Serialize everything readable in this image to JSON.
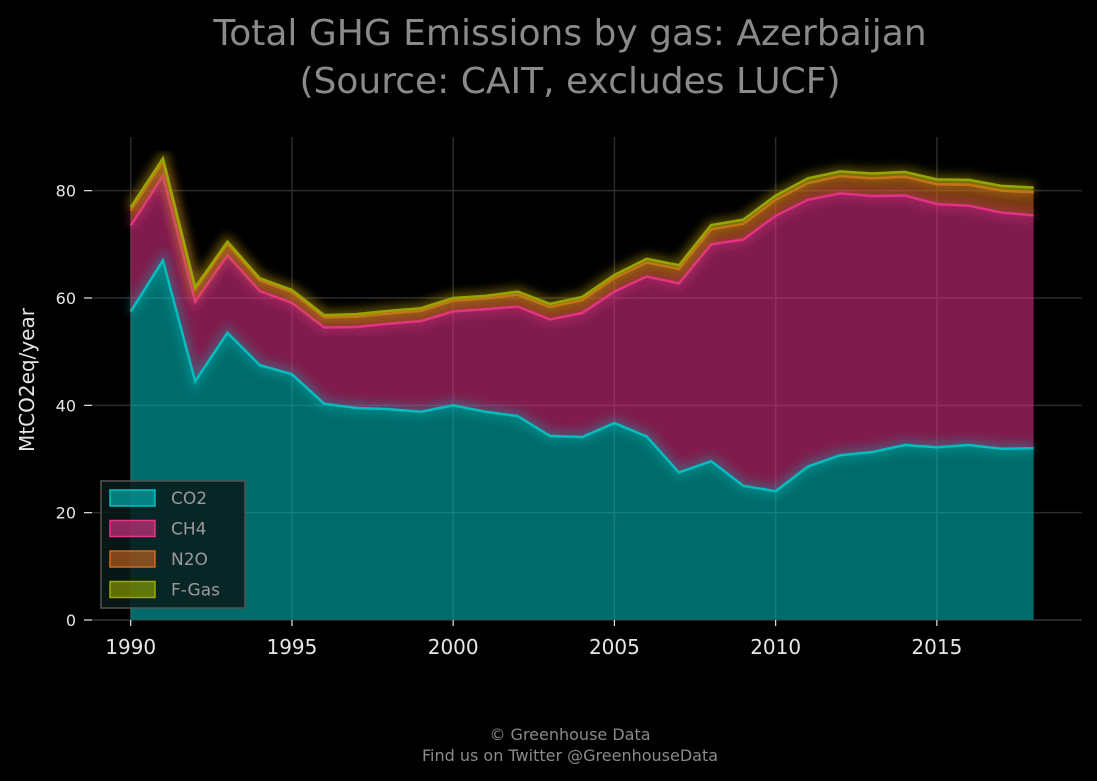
{
  "chart_data": {
    "type": "area",
    "stacked": true,
    "title_lines": [
      "Total GHG Emissions by gas: Azerbaijan",
      "(Source: CAIT, excludes LUCF)"
    ],
    "xlabel": "",
    "ylabel": "MtCO2eq/year",
    "xlim": [
      1988.8,
      2019.5
    ],
    "ylim": [
      0,
      90
    ],
    "xticks": [
      1990,
      1995,
      2000,
      2005,
      2010,
      2015
    ],
    "yticks": [
      0,
      20,
      40,
      60,
      80
    ],
    "grid": true,
    "legend_position": "lower-left",
    "x": [
      1990,
      1991,
      1992,
      1993,
      1994,
      1995,
      1996,
      1997,
      1998,
      1999,
      2000,
      2001,
      2002,
      2003,
      2004,
      2005,
      2006,
      2007,
      2008,
      2009,
      2010,
      2011,
      2012,
      2013,
      2014,
      2015,
      2016,
      2017,
      2018
    ],
    "series": [
      {
        "name": "CO2",
        "color": "#00c2c2",
        "values": [
          57.5,
          67,
          44.5,
          53.5,
          47.5,
          45.8,
          40.3,
          39.5,
          39.3,
          38.8,
          40,
          38.8,
          38,
          34.3,
          34.1,
          36.7,
          34.2,
          27.5,
          29.6,
          25,
          24,
          28.6,
          30.7,
          31.3,
          32.6,
          32.2,
          32.6,
          31.9,
          32
        ]
      },
      {
        "name": "CH4",
        "color": "#e8338a",
        "values": [
          16,
          15.8,
          14.8,
          14.5,
          13.8,
          13.3,
          14.2,
          15.1,
          15.9,
          16.9,
          17.5,
          19.1,
          20.4,
          21.7,
          23.1,
          24.5,
          29.8,
          35.2,
          40.4,
          45.9,
          51.3,
          49.7,
          48.8,
          47.7,
          46.5,
          45.3,
          44.6,
          44,
          43.4
        ]
      },
      {
        "name": "N2O",
        "color": "#d2691e",
        "values": [
          2.8,
          2.6,
          2.3,
          2.1,
          2,
          2,
          1.9,
          1.9,
          1.9,
          1.9,
          2,
          2,
          2.2,
          2.3,
          2.4,
          2.5,
          2.6,
          2.7,
          2.8,
          2.9,
          3,
          3.1,
          3.2,
          3.3,
          3.5,
          3.7,
          3.9,
          4.1,
          4.3
        ]
      },
      {
        "name": "F-Gas",
        "color": "#9aaa00",
        "values": [
          0.6,
          0.6,
          0.4,
          0.4,
          0.4,
          0.4,
          0.4,
          0.5,
          0.5,
          0.5,
          0.5,
          0.5,
          0.6,
          0.6,
          0.6,
          0.6,
          0.7,
          0.7,
          0.8,
          0.8,
          0.8,
          0.9,
          0.9,
          0.9,
          0.9,
          0.9,
          0.9,
          0.9,
          0.9
        ]
      }
    ]
  },
  "credit_lines": [
    "© Greenhouse Data",
    "Find us on Twitter @GreenhouseData"
  ]
}
